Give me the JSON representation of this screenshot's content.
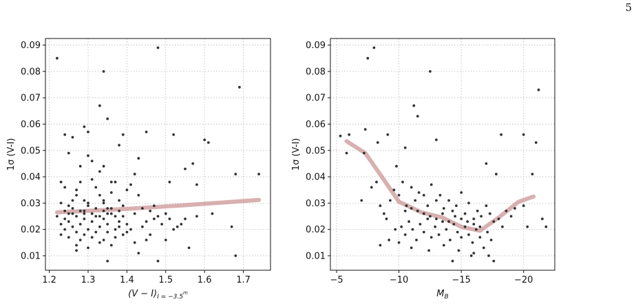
{
  "page": {
    "number": "5"
  },
  "chart_data": [
    {
      "type": "scatter",
      "xlabel": "(V − I)",
      "xlabel_sub": "I = −3.5",
      "xlabel_sup": "m",
      "ylabel": "1σ (V-I)",
      "xlim": [
        1.19,
        1.77
      ],
      "ylim": [
        0.0045,
        0.0925
      ],
      "x_ticks": [
        1.2,
        1.3,
        1.4,
        1.5,
        1.6,
        1.7
      ],
      "x_tick_labels": [
        "1.2",
        "1.3",
        "1.4",
        "1.5",
        "1.6",
        "1.7"
      ],
      "y_ticks": [
        0.01,
        0.02,
        0.03,
        0.04,
        0.05,
        0.06,
        0.07,
        0.08,
        0.09
      ],
      "y_tick_labels": [
        "0.01",
        "0.02",
        "0.03",
        "0.04",
        "0.05",
        "0.06",
        "0.07",
        "0.08",
        "0.09"
      ],
      "grid": true,
      "x_reversed": false,
      "trend_color": "#c98f8f",
      "point_color": "#333333",
      "trend": [
        [
          1.22,
          0.0265
        ],
        [
          1.4,
          0.0278
        ],
        [
          1.55,
          0.0292
        ],
        [
          1.74,
          0.0312
        ]
      ],
      "points": [
        [
          1.22,
          0.085
        ],
        [
          1.24,
          0.056
        ],
        [
          1.25,
          0.049
        ],
        [
          1.26,
          0.055
        ],
        [
          1.28,
          0.044
        ],
        [
          1.29,
          0.059
        ],
        [
          1.3,
          0.057
        ],
        [
          1.31,
          0.046
        ],
        [
          1.33,
          0.067
        ],
        [
          1.34,
          0.08
        ],
        [
          1.35,
          0.062
        ],
        [
          1.34,
          0.044
        ],
        [
          1.33,
          0.042
        ],
        [
          1.38,
          0.052
        ],
        [
          1.39,
          0.056
        ],
        [
          1.42,
          0.041
        ],
        [
          1.43,
          0.047
        ],
        [
          1.45,
          0.057
        ],
        [
          1.48,
          0.089
        ],
        [
          1.52,
          0.056
        ],
        [
          1.55,
          0.043
        ],
        [
          1.57,
          0.045
        ],
        [
          1.6,
          0.054
        ],
        [
          1.61,
          0.053
        ],
        [
          1.69,
          0.074
        ],
        [
          1.74,
          0.041
        ],
        [
          1.68,
          0.041
        ],
        [
          1.58,
          0.037
        ],
        [
          1.51,
          0.038
        ],
        [
          1.36,
          0.038
        ],
        [
          1.3,
          0.048
        ],
        [
          1.23,
          0.038
        ],
        [
          1.24,
          0.036
        ],
        [
          1.25,
          0.029
        ],
        [
          1.26,
          0.031
        ],
        [
          1.27,
          0.033
        ],
        [
          1.27,
          0.035
        ],
        [
          1.28,
          0.038
        ],
        [
          1.29,
          0.027
        ],
        [
          1.3,
          0.03
        ],
        [
          1.31,
          0.039
        ],
        [
          1.32,
          0.036
        ],
        [
          1.33,
          0.033
        ],
        [
          1.34,
          0.03
        ],
        [
          1.35,
          0.028
        ],
        [
          1.36,
          0.034
        ],
        [
          1.37,
          0.038
        ],
        [
          1.38,
          0.031
        ],
        [
          1.39,
          0.029
        ],
        [
          1.4,
          0.035
        ],
        [
          1.41,
          0.037
        ],
        [
          1.42,
          0.026
        ],
        [
          1.43,
          0.033
        ],
        [
          1.44,
          0.028
        ],
        [
          1.46,
          0.027
        ],
        [
          1.47,
          0.029
        ],
        [
          1.5,
          0.026
        ],
        [
          1.53,
          0.021
        ],
        [
          1.55,
          0.024
        ],
        [
          1.58,
          0.025
        ],
        [
          1.62,
          0.026
        ],
        [
          1.67,
          0.021
        ],
        [
          1.68,
          0.01
        ],
        [
          1.22,
          0.025
        ],
        [
          1.23,
          0.022
        ],
        [
          1.23,
          0.018
        ],
        [
          1.24,
          0.02
        ],
        [
          1.24,
          0.024
        ],
        [
          1.25,
          0.023
        ],
        [
          1.25,
          0.017
        ],
        [
          1.26,
          0.021
        ],
        [
          1.26,
          0.026
        ],
        [
          1.27,
          0.019
        ],
        [
          1.27,
          0.014
        ],
        [
          1.28,
          0.022
        ],
        [
          1.28,
          0.016
        ],
        [
          1.29,
          0.024
        ],
        [
          1.29,
          0.018
        ],
        [
          1.3,
          0.02
        ],
        [
          1.3,
          0.013
        ],
        [
          1.31,
          0.023
        ],
        [
          1.31,
          0.017
        ],
        [
          1.32,
          0.019
        ],
        [
          1.32,
          0.025
        ],
        [
          1.33,
          0.015
        ],
        [
          1.33,
          0.021
        ],
        [
          1.34,
          0.016
        ],
        [
          1.34,
          0.024
        ],
        [
          1.35,
          0.019
        ],
        [
          1.35,
          0.022
        ],
        [
          1.36,
          0.014
        ],
        [
          1.36,
          0.026
        ],
        [
          1.37,
          0.02
        ],
        [
          1.37,
          0.017
        ],
        [
          1.38,
          0.023
        ],
        [
          1.38,
          0.021
        ],
        [
          1.39,
          0.018
        ],
        [
          1.39,
          0.025
        ],
        [
          1.4,
          0.019
        ],
        [
          1.4,
          0.022
        ],
        [
          1.41,
          0.02
        ],
        [
          1.42,
          0.015
        ],
        [
          1.43,
          0.011
        ],
        [
          1.44,
          0.021
        ],
        [
          1.45,
          0.023
        ],
        [
          1.46,
          0.018
        ],
        [
          1.47,
          0.024
        ],
        [
          1.48,
          0.025
        ],
        [
          1.49,
          0.022
        ],
        [
          1.5,
          0.016
        ],
        [
          1.51,
          0.024
        ],
        [
          1.52,
          0.02
        ],
        [
          1.54,
          0.022
        ],
        [
          1.56,
          0.013
        ],
        [
          1.45,
          0.016
        ],
        [
          1.24,
          0.027
        ],
        [
          1.25,
          0.026
        ],
        [
          1.26,
          0.028
        ],
        [
          1.27,
          0.025
        ],
        [
          1.28,
          0.027
        ],
        [
          1.29,
          0.026
        ],
        [
          1.3,
          0.029
        ],
        [
          1.31,
          0.026
        ],
        [
          1.32,
          0.028
        ],
        [
          1.33,
          0.025
        ],
        [
          1.34,
          0.027
        ],
        [
          1.35,
          0.026
        ],
        [
          1.36,
          0.028
        ],
        [
          1.37,
          0.025
        ],
        [
          1.38,
          0.027
        ],
        [
          1.23,
          0.03
        ],
        [
          1.29,
          0.031
        ],
        [
          1.34,
          0.031
        ],
        [
          1.35,
          0.008
        ],
        [
          1.48,
          0.008
        ],
        [
          1.27,
          0.012
        ]
      ]
    },
    {
      "type": "scatter",
      "xlabel": "M",
      "xlabel_sub": "B",
      "xlabel_sup": "",
      "ylabel": "1σ (V-I)",
      "xlim": [
        -4.5,
        -22.5
      ],
      "ylim": [
        0.0045,
        0.0925
      ],
      "x_ticks": [
        -5,
        -10,
        -15,
        -20
      ],
      "x_tick_labels": [
        "−5",
        "−10",
        "−15",
        "−20"
      ],
      "y_ticks": [
        0.01,
        0.02,
        0.03,
        0.04,
        0.05,
        0.06,
        0.07,
        0.08,
        0.09
      ],
      "y_tick_labels": [
        "0.01",
        "0.02",
        "0.03",
        "0.04",
        "0.05",
        "0.06",
        "0.07",
        "0.08",
        "0.09"
      ],
      "grid": true,
      "x_reversed": true,
      "trend_color": "#c98f8f",
      "point_color": "#333333",
      "trend": [
        [
          -5.8,
          0.0535
        ],
        [
          -7.3,
          0.049
        ],
        [
          -8.7,
          0.0395
        ],
        [
          -10.0,
          0.0305
        ],
        [
          -11.8,
          0.0265
        ],
        [
          -13.5,
          0.0245
        ],
        [
          -15.0,
          0.021
        ],
        [
          -16.5,
          0.0195
        ],
        [
          -18.0,
          0.0245
        ],
        [
          -19.6,
          0.0305
        ],
        [
          -20.8,
          0.0325
        ]
      ],
      "points": [
        [
          -5.3,
          0.0555
        ],
        [
          -5.8,
          0.049
        ],
        [
          -6.0,
          0.056
        ],
        [
          -7.3,
          0.058
        ],
        [
          -7.5,
          0.085
        ],
        [
          -8.0,
          0.089
        ],
        [
          -9.1,
          0.056
        ],
        [
          -9.8,
          0.044
        ],
        [
          -11.2,
          0.067
        ],
        [
          -11.5,
          0.063
        ],
        [
          -12.5,
          0.08
        ],
        [
          -13.0,
          0.054
        ],
        [
          -10.5,
          0.051
        ],
        [
          -8.3,
          0.053
        ],
        [
          -17.0,
          0.045
        ],
        [
          -17.8,
          0.041
        ],
        [
          -18.2,
          0.056
        ],
        [
          -20.0,
          0.056
        ],
        [
          -20.7,
          0.041
        ],
        [
          -21.2,
          0.073
        ],
        [
          -21.0,
          0.053
        ],
        [
          -7.0,
          0.031
        ],
        [
          -7.2,
          0.049
        ],
        [
          -7.8,
          0.036
        ],
        [
          -8.2,
          0.038
        ],
        [
          -8.5,
          0.029
        ],
        [
          -8.8,
          0.026
        ],
        [
          -9.0,
          0.024
        ],
        [
          -9.3,
          0.031
        ],
        [
          -9.6,
          0.035
        ],
        [
          -10.0,
          0.033
        ],
        [
          -10.3,
          0.038
        ],
        [
          -10.6,
          0.029
        ],
        [
          -11.0,
          0.036
        ],
        [
          -11.3,
          0.031
        ],
        [
          -11.6,
          0.034
        ],
        [
          -12.0,
          0.033
        ],
        [
          -12.3,
          0.029
        ],
        [
          -12.6,
          0.037
        ],
        [
          -13.0,
          0.031
        ],
        [
          -13.3,
          0.033
        ],
        [
          -13.6,
          0.028
        ],
        [
          -14.0,
          0.031
        ],
        [
          -14.3,
          0.027
        ],
        [
          -14.6,
          0.029
        ],
        [
          -15.0,
          0.034
        ],
        [
          -15.3,
          0.026
        ],
        [
          -15.6,
          0.03
        ],
        [
          -16.0,
          0.024
        ],
        [
          -16.3,
          0.027
        ],
        [
          -16.6,
          0.025
        ],
        [
          -17.0,
          0.029
        ],
        [
          -17.3,
          0.026
        ],
        [
          -17.6,
          0.023
        ],
        [
          -18.0,
          0.024
        ],
        [
          -18.6,
          0.027
        ],
        [
          -19.0,
          0.025
        ],
        [
          -19.3,
          0.028
        ],
        [
          -20.0,
          0.029
        ],
        [
          -20.3,
          0.021
        ],
        [
          -21.5,
          0.024
        ],
        [
          -21.8,
          0.021
        ],
        [
          -18.3,
          0.021
        ],
        [
          -9.2,
          0.016
        ],
        [
          -9.7,
          0.02
        ],
        [
          -10.2,
          0.021
        ],
        [
          -10.5,
          0.018
        ],
        [
          -10.8,
          0.023
        ],
        [
          -11.1,
          0.02
        ],
        [
          -11.4,
          0.016
        ],
        [
          -11.7,
          0.022
        ],
        [
          -12.0,
          0.019
        ],
        [
          -12.3,
          0.024
        ],
        [
          -12.6,
          0.017
        ],
        [
          -12.9,
          0.021
        ],
        [
          -13.2,
          0.018
        ],
        [
          -13.5,
          0.023
        ],
        [
          -13.8,
          0.02
        ],
        [
          -14.1,
          0.016
        ],
        [
          -14.4,
          0.022
        ],
        [
          -14.7,
          0.019
        ],
        [
          -15.0,
          0.017
        ],
        [
          -15.3,
          0.021
        ],
        [
          -15.6,
          0.018
        ],
        [
          -15.9,
          0.015
        ],
        [
          -16.2,
          0.02
        ],
        [
          -16.5,
          0.017
        ],
        [
          -16.8,
          0.013
        ],
        [
          -17.1,
          0.019
        ],
        [
          -17.4,
          0.016
        ],
        [
          -11.0,
          0.013
        ],
        [
          -12.4,
          0.012
        ],
        [
          -13.6,
          0.014
        ],
        [
          -14.8,
          0.012
        ],
        [
          -16.0,
          0.011
        ],
        [
          -17.2,
          0.01
        ],
        [
          -8.5,
          0.014
        ],
        [
          -10.0,
          0.015
        ],
        [
          -12.0,
          0.026
        ],
        [
          -12.5,
          0.025
        ],
        [
          -13.0,
          0.024
        ],
        [
          -13.5,
          0.026
        ],
        [
          -14.0,
          0.023
        ],
        [
          -14.5,
          0.025
        ],
        [
          -15.0,
          0.024
        ],
        [
          -15.5,
          0.023
        ],
        [
          -16.0,
          0.022
        ],
        [
          -16.5,
          0.021
        ],
        [
          -11.5,
          0.027
        ],
        [
          -11.0,
          0.028
        ],
        [
          -10.5,
          0.027
        ],
        [
          -14.3,
          0.008
        ],
        [
          -17.6,
          0.008
        ],
        [
          -15.8,
          0.01
        ]
      ]
    }
  ]
}
